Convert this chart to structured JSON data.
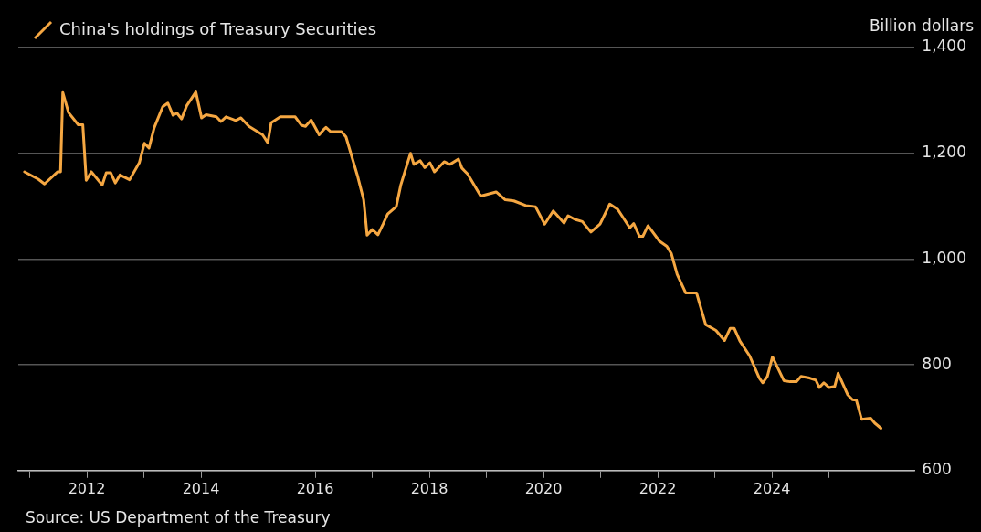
{
  "chart_data": {
    "type": "line",
    "ylabel": "Billion dollars",
    "legend": "top left",
    "grid": "y",
    "marker": "none",
    "line_style": "solid",
    "xlim": [
      2010.8,
      2026.5
    ],
    "xticks": [
      {
        "value": 2011,
        "label": null
      },
      2012,
      {
        "value": 2013,
        "label": null
      },
      2014,
      {
        "value": 2015,
        "label": null
      },
      2016,
      {
        "value": 2017,
        "label": null
      },
      2018,
      {
        "value": 2019,
        "label": null
      },
      2020,
      {
        "value": 2021,
        "label": null
      },
      2022,
      {
        "value": 2023,
        "label": null
      },
      2024,
      {
        "value": 2025,
        "label": null
      }
    ],
    "ylim": [
      600,
      1400
    ],
    "yticks": [
      {
        "value": 600,
        "label": "600"
      },
      {
        "value": 800,
        "label": "800"
      },
      {
        "value": 1000,
        "label": "1,000"
      },
      {
        "value": 1200,
        "label": "1,200"
      },
      {
        "value": 1400,
        "label": "1,400"
      }
    ],
    "annotations": [
      "Source: US Department of the Treasury"
    ],
    "series": [
      {
        "name": "China's holdings of Treasury Securities",
        "color": "#f5a742",
        "x": [
          2010.91,
          2011.15,
          2011.26,
          2011.49,
          2011.54,
          2011.58,
          2011.68,
          2011.85,
          2011.93,
          2011.99,
          2012.08,
          2012.27,
          2012.34,
          2012.42,
          2012.5,
          2012.58,
          2012.75,
          2012.92,
          2013.01,
          2013.09,
          2013.18,
          2013.33,
          2013.42,
          2013.51,
          2013.58,
          2013.66,
          2013.75,
          2013.91,
          2014.01,
          2014.09,
          2014.27,
          2014.35,
          2014.44,
          2014.61,
          2014.7,
          2014.84,
          2015.08,
          2015.17,
          2015.23,
          2015.39,
          2015.65,
          2015.76,
          2015.83,
          2015.93,
          2016.07,
          2016.15,
          2016.19,
          2016.27,
          2016.46,
          2016.54,
          2016.74,
          2016.85,
          2016.91,
          2017.0,
          2017.1,
          2017.19,
          2017.27,
          2017.42,
          2017.5,
          2017.67,
          2017.73,
          2017.84,
          2017.92,
          2018.01,
          2018.09,
          2018.26,
          2018.36,
          2018.51,
          2018.57,
          2018.67,
          2018.9,
          2019.17,
          2019.33,
          2019.48,
          2019.69,
          2019.86,
          2020.02,
          2020.17,
          2020.36,
          2020.43,
          2020.55,
          2020.68,
          2020.83,
          2020.99,
          2021.16,
          2021.3,
          2021.51,
          2021.58,
          2021.68,
          2021.74,
          2021.83,
          2022.03,
          2022.16,
          2022.24,
          2022.34,
          2022.49,
          2022.68,
          2022.84,
          2023.02,
          2023.17,
          2023.27,
          2023.34,
          2023.44,
          2023.61,
          2023.78,
          2023.84,
          2023.92,
          2024.01,
          2024.21,
          2024.32,
          2024.43,
          2024.51,
          2024.66,
          2024.77,
          2024.83,
          2024.91,
          2025.0,
          2025.1,
          2025.16,
          2025.33,
          2025.41,
          2025.48,
          2025.57,
          2025.73,
          2025.8,
          2025.91
        ],
        "values": [
          1165,
          1151,
          1142,
          1165,
          1165,
          1315,
          1277,
          1254,
          1254,
          1149,
          1165,
          1140,
          1163,
          1163,
          1144,
          1159,
          1150,
          1182,
          1219,
          1210,
          1248,
          1288,
          1295,
          1272,
          1276,
          1265,
          1290,
          1316,
          1267,
          1273,
          1269,
          1260,
          1269,
          1262,
          1267,
          1251,
          1235,
          1220,
          1258,
          1269,
          1269,
          1253,
          1251,
          1263,
          1235,
          1245,
          1249,
          1241,
          1241,
          1231,
          1158,
          1112,
          1045,
          1056,
          1046,
          1066,
          1085,
          1099,
          1140,
          1200,
          1179,
          1186,
          1173,
          1182,
          1165,
          1184,
          1179,
          1189,
          1172,
          1161,
          1119,
          1127,
          1112,
          1110,
          1101,
          1099,
          1066,
          1091,
          1068,
          1082,
          1075,
          1071,
          1051,
          1066,
          1104,
          1094,
          1059,
          1067,
          1043,
          1043,
          1063,
          1034,
          1024,
          1010,
          971,
          936,
          936,
          876,
          865,
          846,
          869,
          869,
          845,
          817,
          775,
          766,
          778,
          815,
          770,
          768,
          768,
          778,
          775,
          771,
          757,
          766,
          757,
          759,
          784,
          743,
          734,
          733,
          697,
          699,
          690,
          680
        ]
      }
    ]
  }
}
